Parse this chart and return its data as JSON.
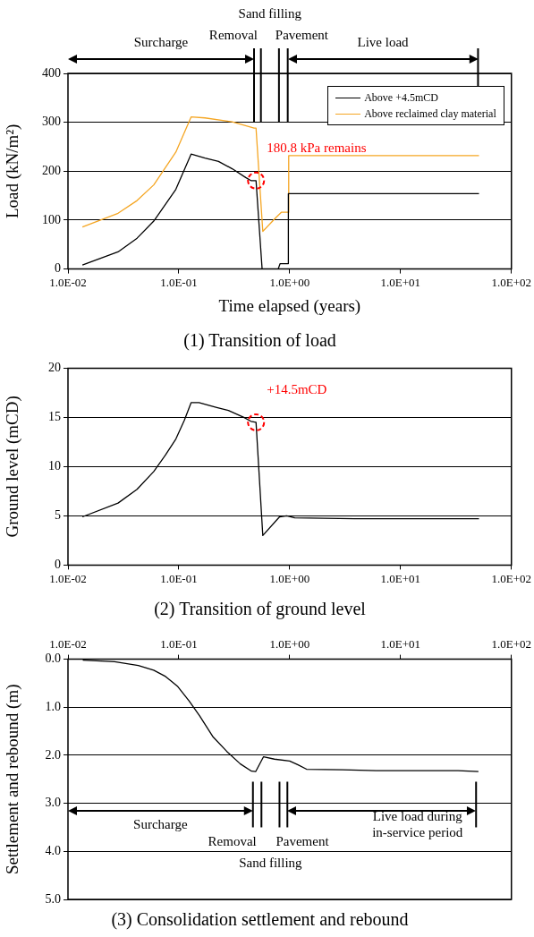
{
  "chart_data": [
    {
      "type": "line",
      "title": "(1) Transition of load",
      "xlabel": "Time elapsed (years)",
      "ylabel": "Load (kN/m²)",
      "log": "x",
      "xlim": [
        0.01,
        100
      ],
      "xticks": [
        {
          "value": 0.01,
          "label": "1.0E-02"
        },
        {
          "value": 0.1,
          "label": "1.0E-01"
        },
        {
          "value": 1,
          "label": "1.0E+00"
        },
        {
          "value": 10,
          "label": "1.0E+01"
        },
        {
          "value": 100,
          "label": "1.0E+02"
        }
      ],
      "ylim": [
        0,
        400
      ],
      "yticks": [
        0,
        100,
        200,
        300,
        400
      ],
      "grid": "y",
      "legend": "top right",
      "series": [
        {
          "name": "Above +4.5mCD",
          "color": "#000000",
          "x": [
            0.0135,
            0.0283,
            0.042,
            0.0594,
            0.094,
            0.129,
            0.172,
            0.228,
            0.303,
            0.401,
            0.447,
            0.497,
            0.564,
            0.787,
            0.82,
            0.973,
            0.973,
            51
          ],
          "values": [
            8,
            35,
            63,
            98,
            163,
            235,
            227,
            220,
            205,
            187,
            180.8,
            180.8,
            0,
            0,
            11,
            11,
            154,
            154
          ]
        },
        {
          "name": "Above reclaimed clay material",
          "color": "#f5a623",
          "x": [
            0.0135,
            0.0283,
            0.042,
            0.0594,
            0.094,
            0.129,
            0.172,
            0.303,
            0.477,
            0.497,
            0.572,
            0.75,
            0.84,
            0.973,
            0.98,
            51
          ],
          "values": [
            86,
            114,
            140,
            172,
            239,
            311,
            309,
            301,
            288,
            288,
            77,
            105,
            116,
            116,
            232,
            232
          ]
        }
      ],
      "ref_lines": [
        {
          "axis": "x",
          "value": 0.477,
          "label": "Removal"
        },
        {
          "axis": "x",
          "value": 0.55,
          "label": "Sand filling"
        },
        {
          "axis": "x",
          "value": 0.8,
          "label": "Pavement"
        },
        {
          "axis": "x",
          "value": 0.96
        },
        {
          "axis": "x",
          "value": 50
        }
      ],
      "annotations": [
        "Surcharge",
        "Live load",
        {
          "text": "180.8 kPa remains",
          "x": 0.497,
          "y": 180.8
        }
      ]
    },
    {
      "type": "line",
      "title": "(2) Transition of ground level",
      "ylabel": "Ground level (mCD)",
      "log": "x",
      "xlim": [
        0.01,
        100
      ],
      "xticks": [
        {
          "value": 0.01,
          "label": "1.0E-02"
        },
        {
          "value": 0.1,
          "label": "1.0E-01"
        },
        {
          "value": 1,
          "label": "1.0E+00"
        },
        {
          "value": 10,
          "label": "1.0E+01"
        },
        {
          "value": 100,
          "label": "1.0E+02"
        }
      ],
      "ylim": [
        0,
        20
      ],
      "yticks": [
        0,
        5,
        10,
        15,
        20
      ],
      "grid": "y",
      "series": [
        {
          "color": "#000000",
          "x": [
            0.0135,
            0.0283,
            0.042,
            0.0594,
            0.076,
            0.094,
            0.112,
            0.129,
            0.152,
            0.22,
            0.28,
            0.386,
            0.447,
            0.497,
            0.572,
            0.81,
            0.94,
            1.11,
            3.84,
            51
          ],
          "values": [
            4.9,
            6.3,
            7.7,
            9.5,
            11.2,
            12.8,
            14.7,
            16.5,
            16.5,
            16.0,
            15.7,
            15.0,
            14.6,
            14.5,
            3.0,
            4.9,
            5.0,
            4.8,
            4.7,
            4.7
          ]
        }
      ],
      "annotations": [
        {
          "text": "+14.5mCD",
          "x": 0.497,
          "y": 14.5
        }
      ]
    },
    {
      "type": "line",
      "title": "(3) Consolidation settlement and rebound",
      "ylabel": "Settlement and rebound (m)",
      "log": "x",
      "xlim": [
        0.01,
        100
      ],
      "xticks": [
        {
          "value": 0.01,
          "label": "1.0E-02"
        },
        {
          "value": 0.1,
          "label": "1.0E-01"
        },
        {
          "value": 1,
          "label": "1.0E+00"
        },
        {
          "value": 10,
          "label": "1.0E+01"
        },
        {
          "value": 100,
          "label": "1.0E+02"
        }
      ],
      "ylim": [
        5,
        0
      ],
      "yticks": [
        {
          "value": 0,
          "label": "0.0"
        },
        {
          "value": 1,
          "label": "1.0"
        },
        {
          "value": 2,
          "label": "2.0"
        },
        {
          "value": 3,
          "label": "3.0"
        },
        {
          "value": 4,
          "label": "4.0"
        },
        {
          "value": 5,
          "label": "5.0"
        }
      ],
      "grid": "y",
      "series": [
        {
          "color": "#000000",
          "x": [
            0.0136,
            0.0263,
            0.0431,
            0.0593,
            0.0759,
            0.097,
            0.124,
            0.154,
            0.204,
            0.271,
            0.359,
            0.453,
            0.493,
            0.581,
            0.728,
            1.0,
            1.19,
            1.42,
            2.98,
            6.05,
            33,
            50.4
          ],
          "values": [
            0.02,
            0.05,
            0.13,
            0.23,
            0.36,
            0.56,
            0.87,
            1.18,
            1.62,
            1.92,
            2.18,
            2.33,
            2.34,
            2.03,
            2.08,
            2.12,
            2.2,
            2.29,
            2.3,
            2.32,
            2.32,
            2.34
          ]
        }
      ],
      "ref_lines": [
        {
          "axis": "x",
          "value": 0.466,
          "label": "Removal"
        },
        {
          "axis": "x",
          "value": 0.556,
          "label": "Sand filling"
        },
        {
          "axis": "x",
          "value": 0.809,
          "label": "Pavement"
        },
        {
          "axis": "x",
          "value": 0.953
        },
        {
          "axis": "x",
          "value": 48
        }
      ],
      "annotations": [
        "Surcharge",
        "Live load during\nin-service period"
      ]
    }
  ]
}
